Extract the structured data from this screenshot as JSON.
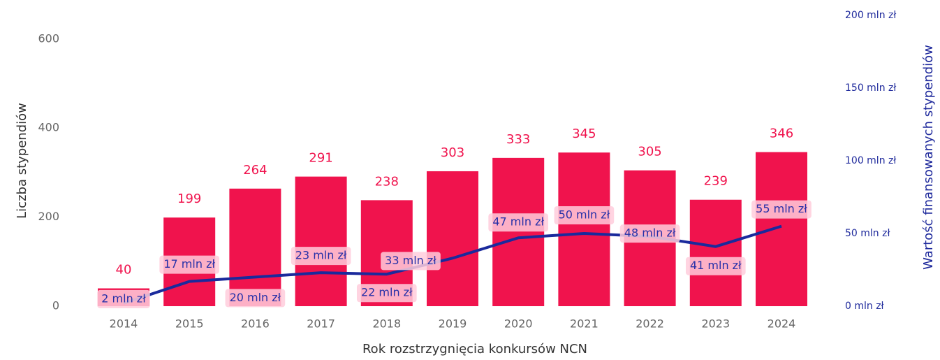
{
  "chart_data": {
    "type": "bar_line",
    "x_label": "Rok rozstrzygnięcia konkursów NCN",
    "y_label": "Liczba stypendiów",
    "y2_label": "Wartość finansowanych stypendiów",
    "categories": [
      "2014",
      "2015",
      "2016",
      "2017",
      "2018",
      "2019",
      "2020",
      "2021",
      "2022",
      "2023",
      "2024"
    ],
    "series": [
      {
        "name": "Liczba stypendiów",
        "color": "#f0134d",
        "type": "bar",
        "values": [
          40,
          199,
          264,
          291,
          238,
          303,
          333,
          345,
          305,
          239,
          346
        ]
      },
      {
        "name": "Wartość finansowanych stypendiów",
        "color": "#1a2a9c",
        "type": "line",
        "axis": "y2",
        "values": [
          2,
          17,
          20,
          23,
          22,
          33,
          47,
          50,
          48,
          41,
          55
        ],
        "value_labels": [
          "2 mln zł",
          "17 mln zł",
          "20 mln zł",
          "23 mln zł",
          "22 mln zł",
          "33 mln zł",
          "47 mln zł",
          "50 mln zł",
          "48 mln zł",
          "41 mln zł",
          "55 mln zł"
        ]
      }
    ],
    "ylim": [
      0,
      653
    ],
    "yticks": [
      0,
      200,
      400,
      600
    ],
    "y2lim": [
      0,
      200
    ],
    "y2ticks": [
      {
        "value": 0,
        "label": "0 mln zł"
      },
      {
        "value": 50,
        "label": "50 mln zł"
      },
      {
        "value": 100,
        "label": "100 mln zł"
      },
      {
        "value": 150,
        "label": "150 mln zł"
      },
      {
        "value": 200,
        "label": "200 mln zł"
      }
    ],
    "grid": false
  }
}
